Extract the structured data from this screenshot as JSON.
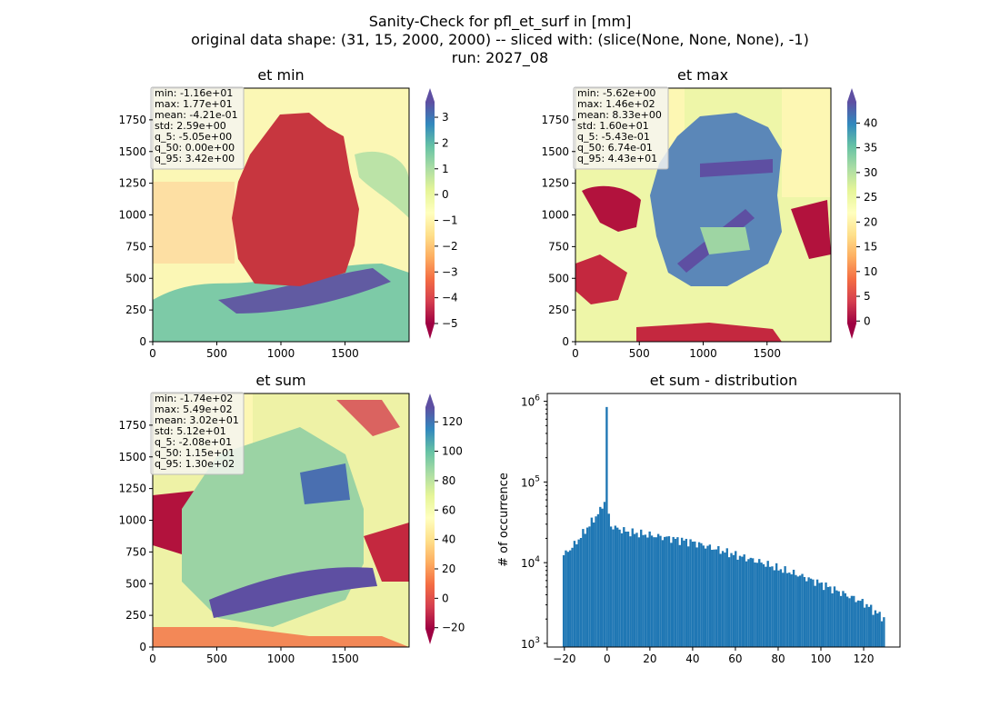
{
  "suptitle": {
    "line1": "Sanity-Check for pfl_et_surf in [mm]",
    "line2": "original data shape: (31, 15, 2000, 2000) -- sliced with: (slice(None, None, None), -1)",
    "line3": "run: 2027_08"
  },
  "colors": {
    "hist_bar": "#1f77b4",
    "colormap": "Spectral",
    "stats_box_bg": "#f5f5f0",
    "stats_box_border": "#bbbbbb"
  },
  "chart_data": [
    {
      "type": "heatmap",
      "title": "et min",
      "xlim": [
        0,
        2000
      ],
      "ylim": [
        0,
        2000
      ],
      "x_ticks": [
        "0",
        "500",
        "1000",
        "1500"
      ],
      "y_ticks": [
        "0",
        "250",
        "500",
        "750",
        "1000",
        "1250",
        "1500",
        "1750"
      ],
      "colorbar": {
        "min": -5,
        "max": 3.6,
        "ticks": [
          "3",
          "2",
          "1",
          "0",
          "−1",
          "−2",
          "−3",
          "−4",
          "−5"
        ],
        "extend": "both"
      },
      "stats": [
        "min: -1.16e+01",
        "max: 1.77e+01",
        "mean: -4.21e-01",
        "std: 2.59e+00",
        "q_5: -5.05e+00",
        "q_50: 0.00e+00",
        "q_95: 3.42e+00"
      ]
    },
    {
      "type": "heatmap",
      "title": "et max",
      "xlim": [
        0,
        2000
      ],
      "ylim": [
        0,
        2000
      ],
      "x_ticks": [
        "0",
        "500",
        "1000",
        "1500"
      ],
      "y_ticks": [
        "0",
        "250",
        "500",
        "750",
        "1000",
        "1250",
        "1500",
        "1750"
      ],
      "colorbar": {
        "min": -0.5,
        "max": 44.3,
        "ticks": [
          "40",
          "35",
          "30",
          "25",
          "20",
          "15",
          "10",
          "5",
          "0"
        ],
        "extend": "both"
      },
      "stats": [
        "min: -5.62e+00",
        "max: 1.46e+02",
        "mean: 8.33e+00",
        "std: 1.60e+01",
        "q_5: -5.43e-01",
        "q_50: 6.74e-01",
        "q_95: 4.43e+01"
      ]
    },
    {
      "type": "heatmap",
      "title": "et sum",
      "xlim": [
        0,
        2000
      ],
      "ylim": [
        0,
        2000
      ],
      "x_ticks": [
        "0",
        "500",
        "1000",
        "1500"
      ],
      "y_ticks": [
        "0",
        "250",
        "500",
        "750",
        "1000",
        "1250",
        "1500",
        "1750"
      ],
      "colorbar": {
        "min": -20.8,
        "max": 130,
        "ticks": [
          "120",
          "100",
          "80",
          "60",
          "40",
          "20",
          "0",
          "−20"
        ],
        "extend": "both"
      },
      "stats": [
        "min: -1.74e+02",
        "max: 5.49e+02",
        "mean: 3.02e+01",
        "std: 5.12e+01",
        "q_5: -2.08e+01",
        "q_50: 1.15e+01",
        "q_95: 1.30e+02"
      ]
    },
    {
      "type": "bar",
      "title": "et sum - distribution",
      "xlabel": "",
      "ylabel": "# of occurrence",
      "yscale": "log",
      "xlim": [
        -28,
        137
      ],
      "ylim": [
        900,
        1250000
      ],
      "x_ticks": [
        "−20",
        "0",
        "20",
        "40",
        "60",
        "80",
        "100",
        "120"
      ],
      "y_ticks": [
        "10^3",
        "10^4",
        "10^5",
        "10^6"
      ],
      "bins": {
        "start": -20.8,
        "end": 130,
        "count": 150
      },
      "anchor_points": [
        {
          "x": -20.8,
          "y": 12000
        },
        {
          "x": -15,
          "y": 17000
        },
        {
          "x": -8,
          "y": 30000
        },
        {
          "x": -3,
          "y": 45000
        },
        {
          "x": -1,
          "y": 60000
        },
        {
          "x": 2,
          "y": 28000
        },
        {
          "x": 10,
          "y": 24000
        },
        {
          "x": 20,
          "y": 22000
        },
        {
          "x": 30,
          "y": 20000
        },
        {
          "x": 40,
          "y": 18000
        },
        {
          "x": 50,
          "y": 15000
        },
        {
          "x": 60,
          "y": 12500
        },
        {
          "x": 70,
          "y": 10500
        },
        {
          "x": 80,
          "y": 8500
        },
        {
          "x": 90,
          "y": 7000
        },
        {
          "x": 100,
          "y": 5500
        },
        {
          "x": 110,
          "y": 4200
        },
        {
          "x": 120,
          "y": 3200
        },
        {
          "x": 130,
          "y": 2000
        }
      ],
      "peak": {
        "x": 0,
        "y": 850000
      }
    }
  ]
}
